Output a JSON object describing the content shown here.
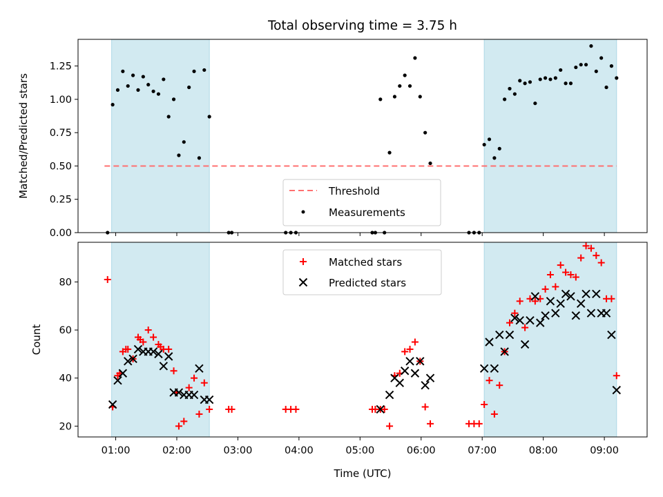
{
  "chart_data": [
    {
      "type": "scatter",
      "title": "Total observing time = 3.75 h",
      "xlabel": "",
      "ylabel": "Matched/Predicted stars",
      "xlim": [
        "00:23",
        "09:42"
      ],
      "ylim": [
        0,
        1.45
      ],
      "yticks": [
        "0.00",
        "0.25",
        "0.50",
        "0.75",
        "1.00",
        "1.25"
      ],
      "xticks": [
        "01:00",
        "02:00",
        "03:00",
        "04:00",
        "05:00",
        "06:00",
        "07:00",
        "08:00",
        "09:00"
      ],
      "shaded_intervals": [
        [
          "00:56",
          "02:32"
        ],
        [
          "07:02",
          "09:12"
        ]
      ],
      "shade_color": "#add8e6",
      "threshold": {
        "name": "Threshold",
        "value": 0.5,
        "x_range": [
          "00:49",
          "09:12"
        ],
        "color": "#ff6f6f"
      },
      "series": [
        {
          "name": "Measurements",
          "color": "#000000",
          "marker": "dot",
          "points": [
            [
              "00:52",
              0.0
            ],
            [
              "00:57",
              0.96
            ],
            [
              "01:02",
              1.07
            ],
            [
              "01:07",
              1.21
            ],
            [
              "01:12",
              1.1
            ],
            [
              "01:17",
              1.18
            ],
            [
              "01:22",
              1.07
            ],
            [
              "01:27",
              1.17
            ],
            [
              "01:32",
              1.11
            ],
            [
              "01:37",
              1.06
            ],
            [
              "01:42",
              1.04
            ],
            [
              "01:47",
              1.15
            ],
            [
              "01:52",
              0.87
            ],
            [
              "01:57",
              1.0
            ],
            [
              "02:02",
              0.58
            ],
            [
              "02:07",
              0.68
            ],
            [
              "02:12",
              1.09
            ],
            [
              "02:17",
              1.21
            ],
            [
              "02:22",
              0.56
            ],
            [
              "02:27",
              1.22
            ],
            [
              "02:32",
              0.87
            ],
            [
              "02:51",
              0.0
            ],
            [
              "02:54",
              0.0
            ],
            [
              "03:47",
              0.0
            ],
            [
              "03:52",
              0.0
            ],
            [
              "03:57",
              0.0
            ],
            [
              "05:12",
              0.0
            ],
            [
              "05:15",
              0.0
            ],
            [
              "05:20",
              1.0
            ],
            [
              "05:24",
              0.0
            ],
            [
              "05:29",
              0.6
            ],
            [
              "05:34",
              1.02
            ],
            [
              "05:39",
              1.1
            ],
            [
              "05:44",
              1.18
            ],
            [
              "05:49",
              1.1
            ],
            [
              "05:54",
              1.31
            ],
            [
              "05:59",
              1.02
            ],
            [
              "06:04",
              0.75
            ],
            [
              "06:09",
              0.52
            ],
            [
              "06:47",
              0.0
            ],
            [
              "06:52",
              0.0
            ],
            [
              "06:57",
              0.0
            ],
            [
              "07:02",
              0.66
            ],
            [
              "07:07",
              0.7
            ],
            [
              "07:12",
              0.56
            ],
            [
              "07:17",
              0.63
            ],
            [
              "07:22",
              1.0
            ],
            [
              "07:27",
              1.08
            ],
            [
              "07:32",
              1.04
            ],
            [
              "07:37",
              1.14
            ],
            [
              "07:42",
              1.12
            ],
            [
              "07:47",
              1.13
            ],
            [
              "07:52",
              0.97
            ],
            [
              "07:57",
              1.15
            ],
            [
              "08:02",
              1.16
            ],
            [
              "08:07",
              1.15
            ],
            [
              "08:12",
              1.16
            ],
            [
              "08:17",
              1.22
            ],
            [
              "08:22",
              1.12
            ],
            [
              "08:27",
              1.12
            ],
            [
              "08:32",
              1.24
            ],
            [
              "08:37",
              1.26
            ],
            [
              "08:42",
              1.26
            ],
            [
              "08:47",
              1.4
            ],
            [
              "08:52",
              1.21
            ],
            [
              "08:57",
              1.31
            ],
            [
              "09:02",
              1.09
            ],
            [
              "09:07",
              1.25
            ],
            [
              "09:12",
              1.16
            ]
          ]
        }
      ],
      "legend": [
        "Threshold",
        "Measurements"
      ],
      "legend_position": "lower center"
    },
    {
      "type": "scatter",
      "title": "",
      "xlabel": "Time (UTC)",
      "ylabel": "Count",
      "xlim": [
        "00:23",
        "09:42"
      ],
      "ylim": [
        15.5,
        96.5
      ],
      "yticks": [
        "20",
        "40",
        "60",
        "80"
      ],
      "xticks": [
        "01:00",
        "02:00",
        "03:00",
        "04:00",
        "05:00",
        "06:00",
        "07:00",
        "08:00",
        "09:00"
      ],
      "shaded_intervals": [
        [
          "00:56",
          "02:32"
        ],
        [
          "07:02",
          "09:12"
        ]
      ],
      "shade_color": "#add8e6",
      "series": [
        {
          "name": "Matched stars",
          "color": "#ff0000",
          "marker": "plus",
          "points": [
            [
              "00:52",
              81
            ],
            [
              "00:57",
              28
            ],
            [
              "01:02",
              41
            ],
            [
              "01:04",
              42
            ],
            [
              "01:07",
              51
            ],
            [
              "01:10",
              52
            ],
            [
              "01:12",
              52
            ],
            [
              "01:17",
              48
            ],
            [
              "01:22",
              57
            ],
            [
              "01:24",
              56
            ],
            [
              "01:27",
              55
            ],
            [
              "01:32",
              60
            ],
            [
              "01:37",
              57
            ],
            [
              "01:42",
              54
            ],
            [
              "01:44",
              53
            ],
            [
              "01:47",
              52
            ],
            [
              "01:52",
              52
            ],
            [
              "01:57",
              43
            ],
            [
              "02:00",
              34
            ],
            [
              "02:02",
              20
            ],
            [
              "02:07",
              22
            ],
            [
              "02:12",
              36
            ],
            [
              "02:17",
              40
            ],
            [
              "02:22",
              25
            ],
            [
              "02:27",
              38
            ],
            [
              "02:32",
              27
            ],
            [
              "02:51",
              27
            ],
            [
              "02:54",
              27
            ],
            [
              "03:47",
              27
            ],
            [
              "03:52",
              27
            ],
            [
              "03:57",
              27
            ],
            [
              "05:12",
              27
            ],
            [
              "05:15",
              27
            ],
            [
              "05:20",
              27
            ],
            [
              "05:24",
              27
            ],
            [
              "05:29",
              20
            ],
            [
              "05:34",
              41
            ],
            [
              "05:39",
              42
            ],
            [
              "05:44",
              51
            ],
            [
              "05:49",
              52
            ],
            [
              "05:54",
              55
            ],
            [
              "05:59",
              47
            ],
            [
              "06:04",
              28
            ],
            [
              "06:09",
              21
            ],
            [
              "06:47",
              21
            ],
            [
              "06:52",
              21
            ],
            [
              "06:57",
              21
            ],
            [
              "07:02",
              29
            ],
            [
              "07:07",
              39
            ],
            [
              "07:12",
              25
            ],
            [
              "07:17",
              37
            ],
            [
              "07:22",
              51
            ],
            [
              "07:27",
              63
            ],
            [
              "07:32",
              67
            ],
            [
              "07:37",
              72
            ],
            [
              "07:42",
              61
            ],
            [
              "07:47",
              73
            ],
            [
              "07:52",
              72
            ],
            [
              "07:57",
              73
            ],
            [
              "08:02",
              77
            ],
            [
              "08:07",
              83
            ],
            [
              "08:12",
              78
            ],
            [
              "08:17",
              87
            ],
            [
              "08:22",
              84
            ],
            [
              "08:27",
              83
            ],
            [
              "08:32",
              82
            ],
            [
              "08:37",
              90
            ],
            [
              "08:42",
              95
            ],
            [
              "08:47",
              94
            ],
            [
              "08:52",
              91
            ],
            [
              "08:57",
              88
            ],
            [
              "09:02",
              73
            ],
            [
              "09:07",
              73
            ],
            [
              "09:12",
              41
            ]
          ]
        },
        {
          "name": "Predicted stars",
          "color": "#000000",
          "marker": "x",
          "points": [
            [
              "00:57",
              29
            ],
            [
              "01:02",
              39
            ],
            [
              "01:07",
              42
            ],
            [
              "01:12",
              47
            ],
            [
              "01:17",
              48
            ],
            [
              "01:22",
              52
            ],
            [
              "01:27",
              51
            ],
            [
              "01:32",
              51
            ],
            [
              "01:37",
              51
            ],
            [
              "01:42",
              50
            ],
            [
              "01:47",
              45
            ],
            [
              "01:52",
              49
            ],
            [
              "01:57",
              34
            ],
            [
              "02:02",
              34
            ],
            [
              "02:07",
              33
            ],
            [
              "02:12",
              33
            ],
            [
              "02:17",
              33
            ],
            [
              "02:22",
              44
            ],
            [
              "02:27",
              31
            ],
            [
              "02:32",
              31
            ],
            [
              "05:20",
              27
            ],
            [
              "05:29",
              33
            ],
            [
              "05:34",
              40
            ],
            [
              "05:39",
              38
            ],
            [
              "05:44",
              43
            ],
            [
              "05:49",
              47
            ],
            [
              "05:54",
              42
            ],
            [
              "05:59",
              47
            ],
            [
              "06:04",
              37
            ],
            [
              "06:09",
              40
            ],
            [
              "07:02",
              44
            ],
            [
              "07:07",
              55
            ],
            [
              "07:12",
              44
            ],
            [
              "07:17",
              58
            ],
            [
              "07:22",
              51
            ],
            [
              "07:27",
              58
            ],
            [
              "07:32",
              65
            ],
            [
              "07:37",
              64
            ],
            [
              "07:42",
              54
            ],
            [
              "07:47",
              64
            ],
            [
              "07:52",
              74
            ],
            [
              "07:57",
              63
            ],
            [
              "08:02",
              66
            ],
            [
              "08:07",
              72
            ],
            [
              "08:12",
              67
            ],
            [
              "08:17",
              71
            ],
            [
              "08:22",
              75
            ],
            [
              "08:27",
              74
            ],
            [
              "08:32",
              66
            ],
            [
              "08:37",
              71
            ],
            [
              "08:42",
              75
            ],
            [
              "08:47",
              67
            ],
            [
              "08:52",
              75
            ],
            [
              "08:57",
              67
            ],
            [
              "09:02",
              67
            ],
            [
              "09:07",
              58
            ],
            [
              "09:12",
              35
            ]
          ]
        }
      ],
      "legend": [
        "Matched stars",
        "Predicted stars"
      ],
      "legend_position": "upper center"
    }
  ]
}
